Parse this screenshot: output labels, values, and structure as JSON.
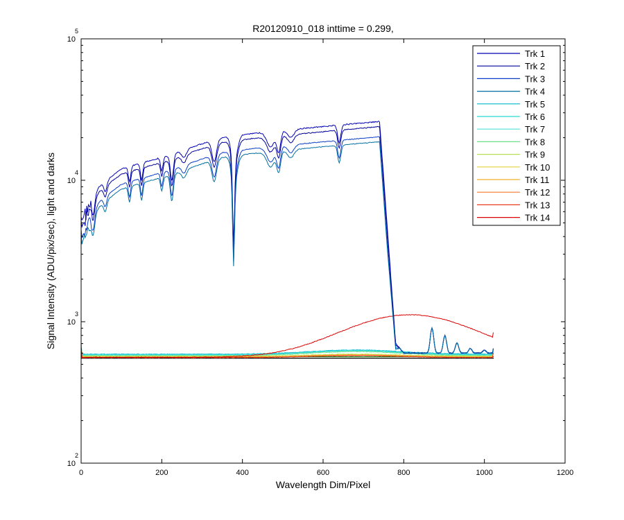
{
  "chart_data": {
    "type": "line",
    "title": "R20120910_018 inttime = 0.299,",
    "xlabel": "Wavelength Dim/Pixel",
    "ylabel": "Signal Intensity (ADU/pix/sec), light and darks",
    "xlim": [
      0,
      1200
    ],
    "ylim": [
      100,
      100000
    ],
    "yscale": "log",
    "xticks": [
      0,
      200,
      400,
      600,
      800,
      1000,
      1200
    ],
    "yticks": [
      {
        "value": 100,
        "base": "10",
        "exp": "2"
      },
      {
        "value": 1000,
        "base": "10",
        "exp": "3"
      },
      {
        "value": 10000,
        "base": "10",
        "exp": "4"
      },
      {
        "value": 100000,
        "base": "10",
        "exp": "5"
      }
    ],
    "grid": false,
    "legend_position": "top-right",
    "series": [
      {
        "name": "Trk 1",
        "color": "#0000b4",
        "profile": "sun",
        "scale": 1.0,
        "noise": 0.03
      },
      {
        "name": "Trk 2",
        "color": "#00009a",
        "profile": "sun",
        "scale": 0.92,
        "noise": 0.025
      },
      {
        "name": "Trk 3",
        "color": "#0a3cc8",
        "profile": "sun",
        "scale": 0.78,
        "noise": 0.02
      },
      {
        "name": "Trk 4",
        "color": "#006fa0",
        "profile": "sun",
        "scale": 0.72,
        "noise": 0.02
      },
      {
        "name": "Trk 5",
        "color": "#00b5c8",
        "profile": "flat",
        "base": 590
      },
      {
        "name": "Trk 6",
        "color": "#26d9d9",
        "profile": "flat",
        "base": 585
      },
      {
        "name": "Trk 7",
        "color": "#4fe3d7",
        "profile": "flat",
        "base": 580
      },
      {
        "name": "Trk 8",
        "color": "#6fe08a",
        "profile": "flat",
        "base": 575
      },
      {
        "name": "Trk 9",
        "color": "#b7e055",
        "profile": "flat",
        "base": 570
      },
      {
        "name": "Trk 10",
        "color": "#e0d23a",
        "profile": "flat",
        "base": 566
      },
      {
        "name": "Trk 11",
        "color": "#f0b02a",
        "profile": "flat",
        "base": 562
      },
      {
        "name": "Trk 12",
        "color": "#f27a2a",
        "profile": "flat",
        "base": 560
      },
      {
        "name": "Trk 13",
        "color": "#e83a1e",
        "profile": "flat",
        "base": 557
      },
      {
        "name": "Trk 14",
        "color": "#dd0000",
        "profile": "bump",
        "base": 560,
        "peak_x": 815,
        "peak_y": 1120
      }
    ],
    "reference_lines": [
      {
        "color": "#000000",
        "value": 552
      },
      {
        "color": "#0b7a0b",
        "value": 565
      }
    ]
  }
}
